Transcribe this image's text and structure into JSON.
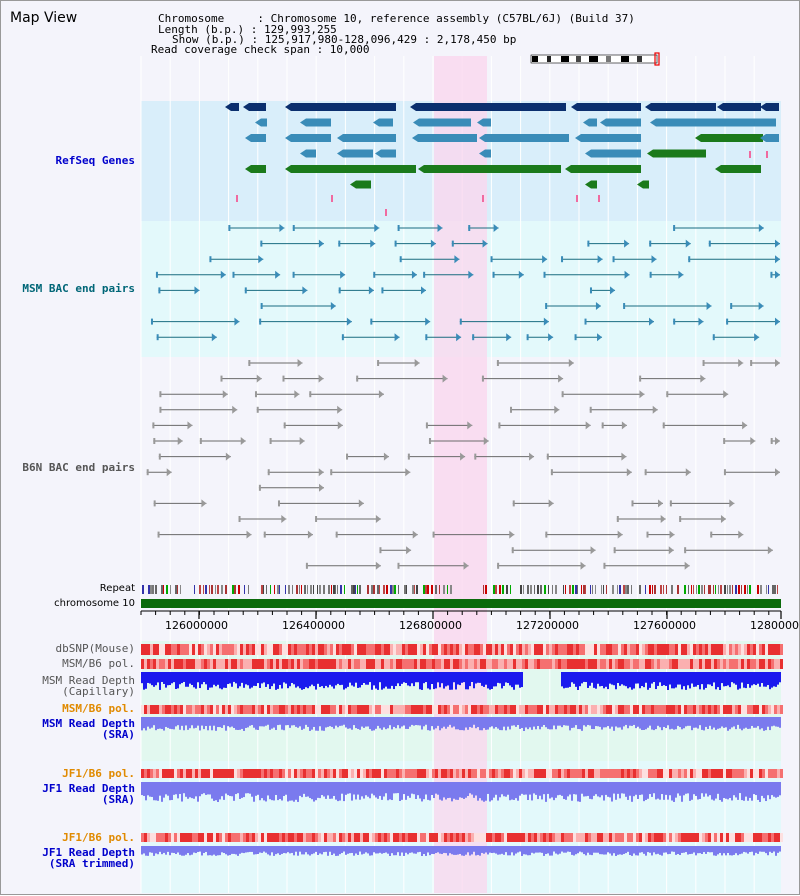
{
  "title": "Map View",
  "info": {
    "chromosome": "Chromosome     : Chromosome 10, reference assembly (C57BL/6J) (Build 37)",
    "length": "Length (b.p.) : 129,993,255",
    "show": "Show (b.p.) : 125,917,980-128,096,429 : 2,178,450 bp",
    "coverage": "Read coverage check span : 10,000"
  },
  "tracks": {
    "refseq": "RefSeq Genes",
    "msm_bac": "MSM BAC end pairs",
    "b6n_bac": "B6N BAC end pairs",
    "repeat": "Repeat",
    "chromosome": "chromosome 10",
    "dbsnp": "dbSNP(Mouse)",
    "msm_b6_pol": "MSM/B6 pol.",
    "msm_depth_cap": "MSM Read Depth\n(Capillary)",
    "msm_b6_pol2": "MSM/B6 pol.",
    "msm_depth_sra": "MSM Read Depth\n(SRA)",
    "jf1_b6_pol": "JF1/B6 pol.",
    "jf1_depth_sra": "JF1 Read Depth\n(SRA)",
    "jf1_b6_pol2": "JF1/B6 pol.",
    "jf1_depth_trim": "JF1 Read Depth\n(SRA trimmed)"
  },
  "axis_ticks": [
    "126000000",
    "126400000",
    "126800000",
    "127200000",
    "127600000",
    "1280000"
  ],
  "colors": {
    "refseq_dark": "#0b2f6e",
    "refseq_mid": "#3a8cb8",
    "refseq_green": "#1b7a1b",
    "bac_msm": "#1a6c80",
    "bac_b6n": "#6a6a6a",
    "highlight": "#fbd6ee",
    "track_label_blue": "#0000cc",
    "track_label_teal": "#006677",
    "track_label_orange": "#e08a00",
    "depth_blue": "#1a1aee",
    "depth_light": "#7a7aee"
  },
  "icons": [
    "chromosome-ideogram-icon"
  ]
}
